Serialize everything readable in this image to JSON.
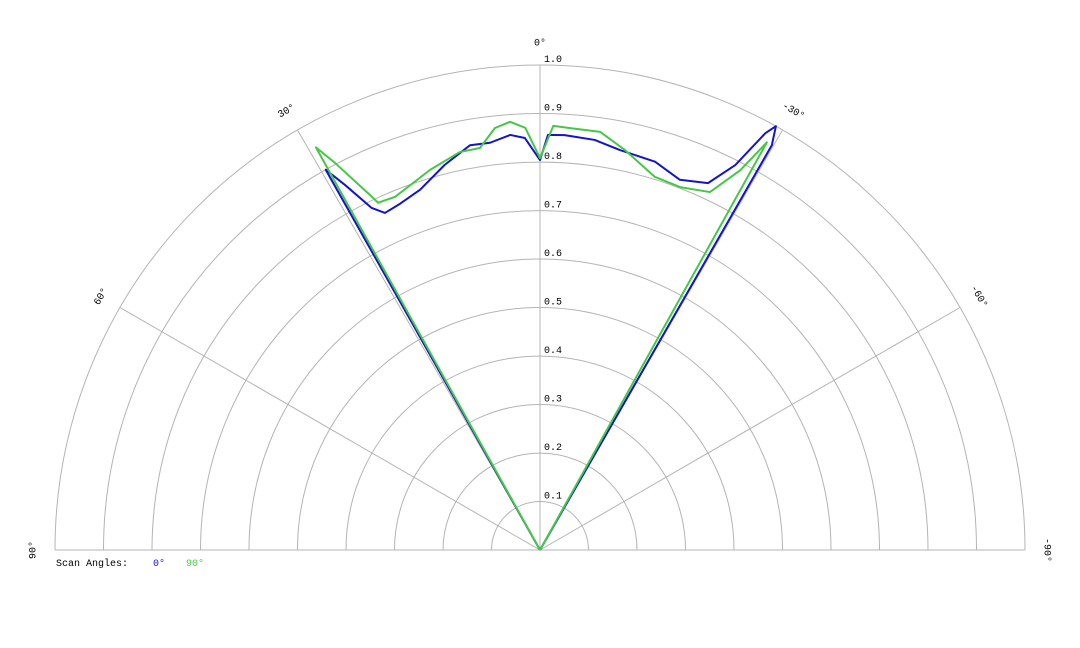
{
  "chart_data": {
    "type": "polar",
    "rlim": [
      0,
      1
    ],
    "rticks": [
      0.1,
      0.2,
      0.3,
      0.4,
      0.5,
      0.6,
      0.7,
      0.8,
      0.9,
      {
        "value": 1,
        "label": "1.0"
      }
    ],
    "thetaticks": [
      {
        "value": 0,
        "label": "0°"
      },
      {
        "value": 30,
        "label": "30°"
      },
      {
        "value": -30,
        "label": "-30°"
      },
      {
        "value": 60,
        "label": "60°"
      },
      {
        "value": -60,
        "label": "-60°"
      },
      {
        "value": 90,
        "label": "90°"
      },
      {
        "value": -90,
        "label": "-90°"
      }
    ],
    "legend_title": "Scan Angles:",
    "series": [
      {
        "name": "0°",
        "color": "#1414c8",
        "theta": [
          30,
          29.4,
          28.1,
          26.2,
          24.7,
          22.0,
          18.4,
          13.9,
          9.8,
          7.0,
          4.1,
          2.1,
          0,
          -1.1,
          -3.4,
          -7.6,
          -11.3,
          -16.5,
          -20.7,
          -24.6,
          -26.9,
          -28.4,
          -29.1,
          -29.8,
          -30
        ],
        "values": [
          0,
          0.9,
          0.853,
          0.786,
          0.765,
          0.77,
          0.783,
          0.818,
          0.847,
          0.846,
          0.858,
          0.85,
          0.804,
          0.856,
          0.857,
          0.853,
          0.841,
          0.835,
          0.816,
          0.832,
          0.89,
          0.977,
          1.0,
          0.962,
          0
        ]
      },
      {
        "name": "90°",
        "color": "#46c846",
        "theta": [
          29,
          29.1,
          27.9,
          25.6,
          25.0,
          22.3,
          16.1,
          11.4,
          8.5,
          6.1,
          4.0,
          2.0,
          0,
          -1.8,
          -4.1,
          -8.2,
          -12.0,
          -17.1,
          -21.1,
          -25.4,
          -27.8,
          -29.1,
          -29
        ],
        "values": [
          0,
          0.95,
          0.903,
          0.812,
          0.79,
          0.787,
          0.816,
          0.837,
          0.838,
          0.875,
          0.885,
          0.871,
          0.808,
          0.875,
          0.872,
          0.871,
          0.843,
          0.805,
          0.802,
          0.817,
          0.885,
          0.962,
          0
        ]
      }
    ]
  }
}
